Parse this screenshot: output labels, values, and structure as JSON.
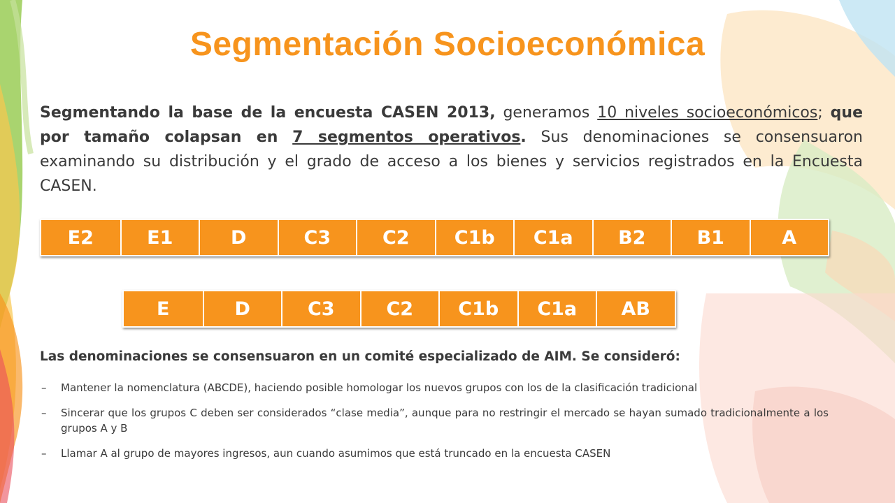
{
  "title": "Segmentación Socioeconómica",
  "intro": {
    "part1": "Segmentando la base de la encuesta CASEN 2013,",
    "part2": " generamos ",
    "part3": "10 niveles socioeconómicos",
    "part4": "; ",
    "part5": "que por tamaño colapsan en",
    "part6": " ",
    "part7": "7 segmentos operativos",
    "part8": ".",
    "part9": " Sus denominaciones se consensuaron examinando su distribución y el grado de acceso a los bienes y servicios registrados en la Encuesta CASEN."
  },
  "levels": [
    "E2",
    "E1",
    "D",
    "C3",
    "C2",
    "C1b",
    "C1a",
    "B2",
    "B1",
    "A"
  ],
  "segments": [
    "E",
    "D",
    "C3",
    "C2",
    "C1b",
    "C1a",
    "AB"
  ],
  "subheading": "Las denominaciones se consensuaron en un comité especializado de AIM. Se consideró:",
  "bullet_marker": "–",
  "bullets": [
    "Mantener la nomenclatura (ABCDE), haciendo posible homologar los nuevos grupos con los de la clasificación tradicional",
    "Sincerar que los grupos C deben ser considerados “clase media”, aunque para no restringir el mercado se hayan sumado tradicionalmente a los grupos A y B",
    "Llamar A al grupo de mayores ingresos, aun cuando asumimos que está truncado en la encuesta CASEN"
  ],
  "colors": {
    "accent": "#f7941d",
    "text": "#3a3a3a"
  }
}
